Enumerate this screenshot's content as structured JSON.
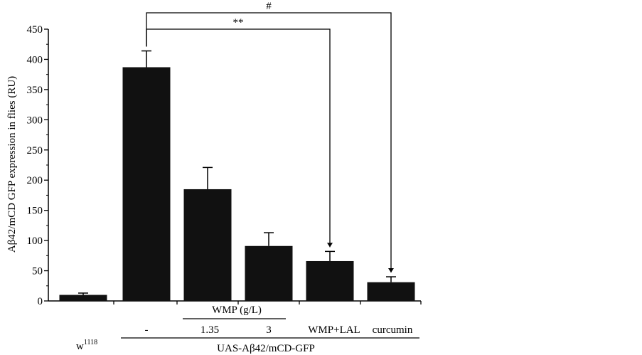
{
  "chart_data": {
    "type": "bar",
    "ylabel": "Aβ42/mCD GFP expression in flies (RU)",
    "ylim": [
      0,
      450
    ],
    "yticks": [
      0,
      50,
      100,
      150,
      200,
      250,
      300,
      350,
      400,
      450
    ],
    "grid": false,
    "bar_color": "#111111",
    "categories": [
      "w1118",
      "-",
      "1.35",
      "3",
      "WMP+LAL",
      "curcumin"
    ],
    "values": [
      10,
      387,
      185,
      91,
      66,
      31
    ],
    "errors": [
      3,
      27,
      36,
      22,
      16,
      9
    ],
    "x_labels": {
      "w1118_base": "w",
      "w1118_sup": "1118",
      "dash": "-",
      "c135": "1.35",
      "c3": "3",
      "wmp_lal": "WMP+LAL",
      "curcumin": "curcumin",
      "wmp_group": "WMP (g/L)",
      "uas_group": "UAS-Aβ42/mCD-GFP"
    },
    "significance": [
      {
        "label": "**",
        "from": 1,
        "to": 4
      },
      {
        "label": "#",
        "from": 1,
        "to": 5
      }
    ]
  }
}
